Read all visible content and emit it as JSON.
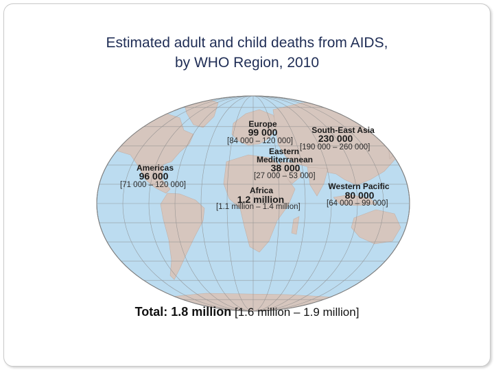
{
  "title_line1": "Estimated adult and child deaths from AIDS,",
  "title_line2": "by WHO Region, 2010",
  "regions": {
    "europe": {
      "name": "Europe",
      "value": "99 000",
      "range": "[84 000 – 120 000]"
    },
    "sea": {
      "name": "South-East Asia",
      "value": "230 000",
      "range": "[190 000 – 260 000]"
    },
    "emr": {
      "name1": "Eastern",
      "name2": "Mediterranean",
      "value": "38 000",
      "range": "[27 000 – 53 000]"
    },
    "americas": {
      "name": "Americas",
      "value": "96 000",
      "range": "[71 000 – 120 000]"
    },
    "africa": {
      "name": "Africa",
      "value": "1.2 million",
      "range": "[1.1 million – 1.4 million]"
    },
    "wpr": {
      "name": "Western Pacific",
      "value": "80 000",
      "range": "[64 000 – 99 000]"
    }
  },
  "total_label": "Total: 1.8 million",
  "total_range": "[1.6 million – 1.9 million]",
  "colors": {
    "ocean": "#bcdcf0",
    "land": "#d6c6be",
    "grid": "#8a8a8a",
    "title": "#1f2d55"
  }
}
